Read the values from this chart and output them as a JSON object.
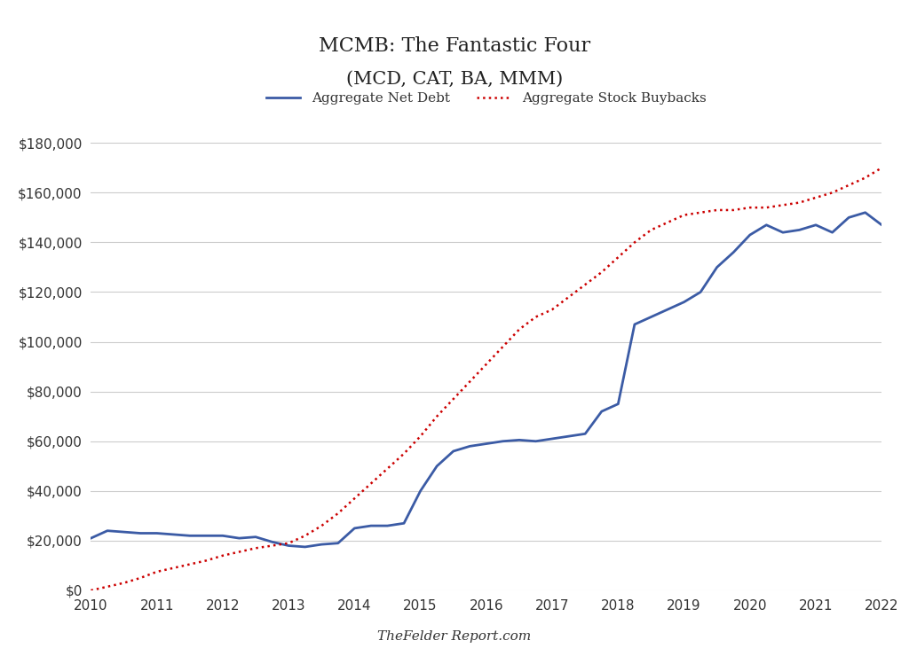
{
  "title_line1": "MCMB: The Fantastic Four",
  "title_line2": "(MCD, CAT, BA, MMM)",
  "xlabel": "TheFelder Report.com",
  "legend_net_debt": "Aggregate Net Debt",
  "legend_buybacks": "Aggregate Stock Buybacks",
  "net_debt_color": "#3B5BA5",
  "buybacks_color": "#CC0000",
  "background_color": "#FFFFFF",
  "grid_color": "#CCCCCC",
  "years": [
    2010.0,
    2010.25,
    2010.5,
    2010.75,
    2011.0,
    2011.25,
    2011.5,
    2011.75,
    2012.0,
    2012.25,
    2012.5,
    2012.75,
    2013.0,
    2013.25,
    2013.5,
    2013.75,
    2014.0,
    2014.25,
    2014.5,
    2014.75,
    2015.0,
    2015.25,
    2015.5,
    2015.75,
    2016.0,
    2016.25,
    2016.5,
    2016.75,
    2017.0,
    2017.25,
    2017.5,
    2017.75,
    2018.0,
    2018.25,
    2018.5,
    2018.75,
    2019.0,
    2019.25,
    2019.5,
    2019.75,
    2020.0,
    2020.25,
    2020.5,
    2020.75,
    2021.0,
    2021.25,
    2021.5,
    2021.75,
    2022.0
  ],
  "net_debt": [
    21000,
    24000,
    23500,
    23000,
    23000,
    22500,
    22000,
    22000,
    22000,
    21000,
    21500,
    19500,
    18000,
    17500,
    18500,
    19000,
    25000,
    26000,
    26000,
    27000,
    40000,
    50000,
    56000,
    58000,
    59000,
    60000,
    60500,
    60000,
    61000,
    62000,
    63000,
    72000,
    75000,
    107000,
    110000,
    113000,
    116000,
    120000,
    130000,
    136000,
    143000,
    147000,
    144000,
    145000,
    147000,
    144000,
    150000,
    152000,
    147000
  ],
  "buybacks": [
    0,
    1500,
    3000,
    5000,
    7500,
    9000,
    10500,
    12000,
    14000,
    15500,
    17000,
    18000,
    19000,
    22000,
    26000,
    31000,
    37000,
    43000,
    49000,
    55000,
    62000,
    70000,
    77000,
    84000,
    91000,
    98000,
    105000,
    110000,
    113000,
    118000,
    123000,
    128000,
    134000,
    140000,
    145000,
    148000,
    151000,
    152000,
    153000,
    153000,
    154000,
    154000,
    155000,
    156000,
    158000,
    160000,
    163000,
    166000,
    170000
  ],
  "ylim": [
    0,
    190000
  ],
  "yticks": [
    0,
    20000,
    40000,
    60000,
    80000,
    100000,
    120000,
    140000,
    160000,
    180000
  ],
  "xlim": [
    2010,
    2022
  ],
  "xticks": [
    2010,
    2011,
    2012,
    2013,
    2014,
    2015,
    2016,
    2017,
    2018,
    2019,
    2020,
    2021,
    2022
  ]
}
